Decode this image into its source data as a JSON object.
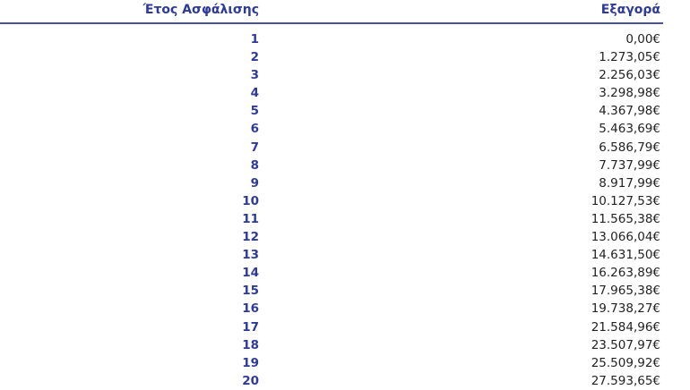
{
  "table": {
    "headers": [
      "Έτος Ασφάλισης",
      "Εξαγορά"
    ],
    "rows": [
      [
        "1",
        "0,00€"
      ],
      [
        "2",
        "1.273,05€"
      ],
      [
        "3",
        "2.256,03€"
      ],
      [
        "4",
        "3.298,98€"
      ],
      [
        "5",
        "4.367,98€"
      ],
      [
        "6",
        "5.463,69€"
      ],
      [
        "7",
        "6.586,79€"
      ],
      [
        "8",
        "7.737,99€"
      ],
      [
        "9",
        "8.917,99€"
      ],
      [
        "10",
        "10.127,53€"
      ],
      [
        "11",
        "11.565,38€"
      ],
      [
        "12",
        "13.066,04€"
      ],
      [
        "13",
        "14.631,50€"
      ],
      [
        "14",
        "16.263,89€"
      ],
      [
        "15",
        "17.965,38€"
      ],
      [
        "16",
        "19.738,27€"
      ],
      [
        "17",
        "21.584,96€"
      ],
      [
        "18",
        "23.507,97€"
      ],
      [
        "19",
        "25.509,92€"
      ],
      [
        "20",
        "27.593,65€"
      ]
    ]
  },
  "colors": {
    "header": "#2d3a9a",
    "rule": "#4a4fa0",
    "text": "#222222"
  }
}
